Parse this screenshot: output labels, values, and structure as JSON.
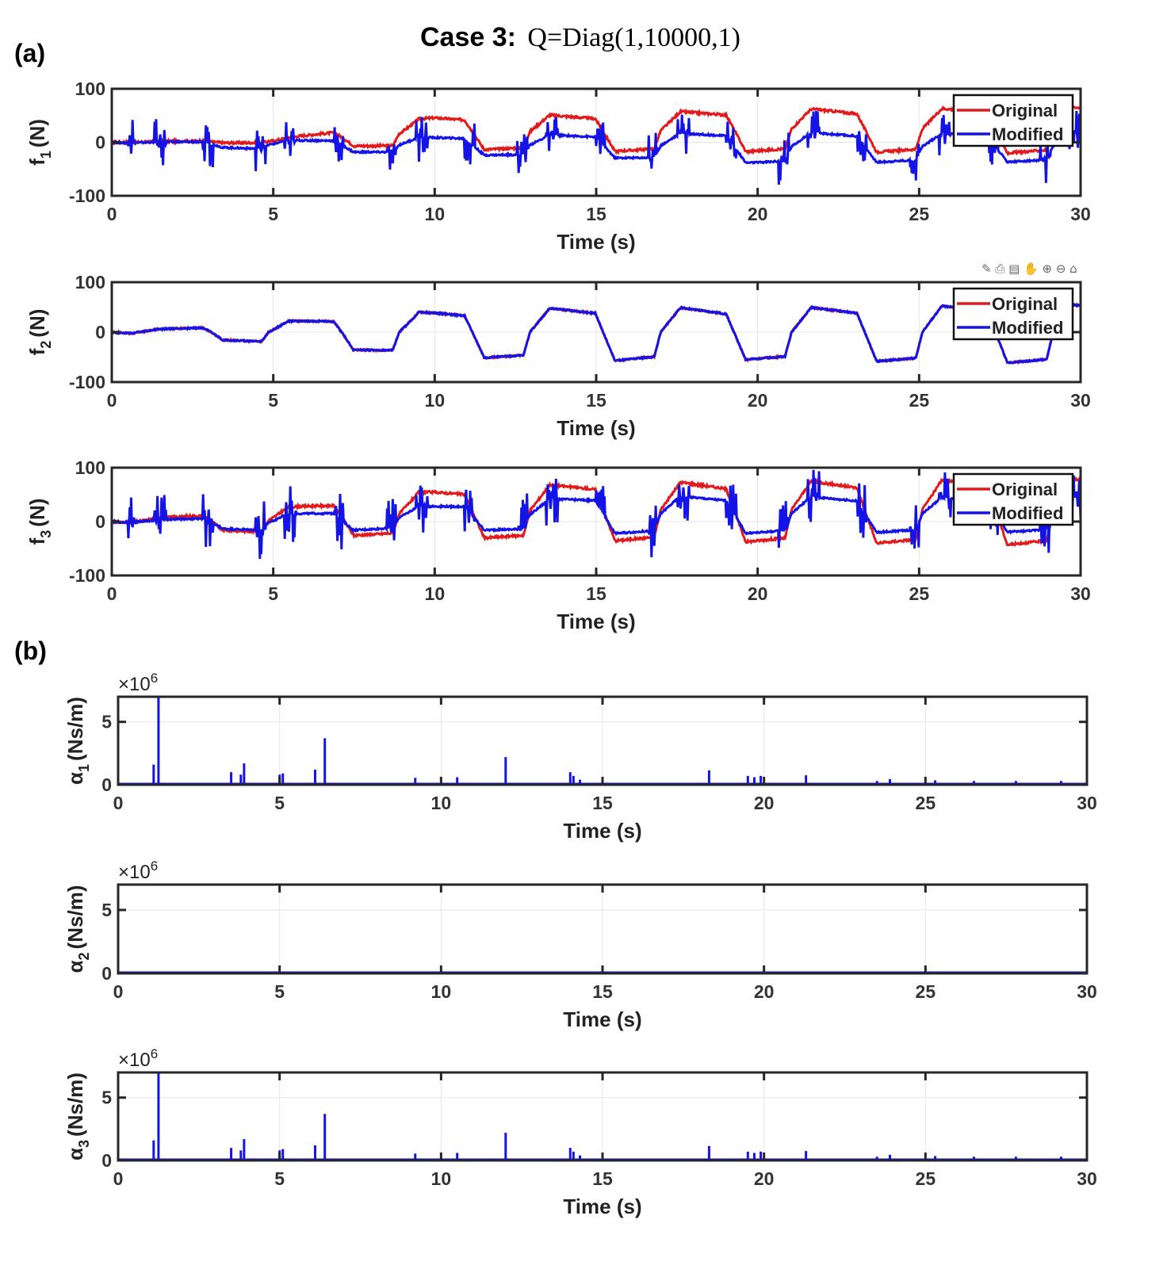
{
  "figure": {
    "title_bold": "Case 3:",
    "title_eq": "Q=Diag(1,10000,1)",
    "panel_a": "(a)",
    "panel_b": "(b)",
    "toolbar_glyphs": "✎ ⎙ ▤ ✋ ⊕ ⊖ ⌂"
  },
  "colors": {
    "original": "#e31a1c",
    "modified": "#1414e6",
    "axis": "#262626",
    "grid": "#e6e6e6"
  },
  "chart_data": [
    {
      "type": "line",
      "name": "f1",
      "ylabel_main": "f",
      "ylabel_sub": "1",
      "ylabel_tail": "(N)",
      "xlabel": "Time (s)",
      "xlim": [
        0,
        30
      ],
      "ylim": [
        -100,
        100
      ],
      "xticks": [
        "0",
        "5",
        "10",
        "15",
        "20",
        "25",
        "30"
      ],
      "yticks": [
        "-100",
        "0",
        "100"
      ],
      "legend": [
        "Original",
        "Modified"
      ],
      "legend_location": "top-right",
      "pattern": {
        "original": {
          "mean": [
            0,
            2,
            20,
            20,
            25,
            25,
            25
          ],
          "amp": [
            0,
            3,
            28,
            32,
            37,
            38,
            40
          ],
          "wiggle": 4
        },
        "modified": {
          "mean": [
            0,
            -5,
            -5,
            -5,
            -8,
            -8,
            -8
          ],
          "amp": [
            0,
            8,
            15,
            20,
            27,
            25,
            25
          ],
          "wiggle": 3,
          "chatter": 45
        }
      }
    },
    {
      "type": "line",
      "name": "f2",
      "ylabel_main": "f",
      "ylabel_sub": "2",
      "ylabel_tail": "(N)",
      "xlabel": "Time (s)",
      "xlim": [
        0,
        30
      ],
      "ylim": [
        -100,
        100
      ],
      "xticks": [
        "0",
        "5",
        "10",
        "15",
        "20",
        "25",
        "30"
      ],
      "yticks": [
        "-100",
        "0",
        "100"
      ],
      "legend": [
        "Original",
        "Modified"
      ],
      "legend_location": "top-right",
      "pattern": {
        "original": {
          "mean": [
            0,
            0,
            0,
            0,
            0,
            0,
            0
          ],
          "amp": [
            0,
            20,
            42,
            50,
            48,
            52,
            55
          ],
          "wiggle": 3
        },
        "modified": {
          "mean": [
            0,
            0,
            0,
            0,
            0,
            0,
            0
          ],
          "amp": [
            0,
            20,
            42,
            50,
            48,
            52,
            55
          ],
          "wiggle": 3,
          "chatter": 0
        }
      }
    },
    {
      "type": "line",
      "name": "f3",
      "ylabel_main": "f",
      "ylabel_sub": "3",
      "ylabel_tail": "(N)",
      "xlabel": "Time (s)",
      "xlim": [
        0,
        30
      ],
      "ylim": [
        -100,
        100
      ],
      "xticks": [
        "0",
        "5",
        "10",
        "15",
        "20",
        "25",
        "30"
      ],
      "yticks": [
        "-100",
        "0",
        "100"
      ],
      "legend": [
        "Original",
        "Modified"
      ],
      "legend_location": "top-right",
      "pattern": {
        "original": {
          "mean": [
            0,
            2,
            18,
            22,
            22,
            22,
            22
          ],
          "amp": [
            0,
            22,
            40,
            50,
            52,
            55,
            58
          ],
          "wiggle": 4
        },
        "modified": {
          "mean": [
            0,
            -2,
            10,
            15,
            15,
            15,
            15
          ],
          "amp": [
            0,
            15,
            20,
            32,
            32,
            30,
            30
          ],
          "wiggle": 3,
          "chatter": 55
        }
      }
    },
    {
      "type": "spikes",
      "name": "alpha1",
      "ylabel_main": "α",
      "ylabel_sub": "1",
      "ylabel_tail": "(Ns/m)",
      "exponent_base": "×10",
      "exponent_power": "6",
      "xlabel": "Time (s)",
      "xlim": [
        0,
        30
      ],
      "ylim": [
        0,
        7
      ],
      "xticks": [
        "0",
        "5",
        "10",
        "15",
        "20",
        "25",
        "30"
      ],
      "yticks": [
        "0",
        "5"
      ],
      "spikes": [
        [
          1.1,
          1.6
        ],
        [
          1.25,
          7.0
        ],
        [
          3.5,
          1.0
        ],
        [
          3.8,
          0.8
        ],
        [
          3.9,
          1.7
        ],
        [
          5.0,
          0.8
        ],
        [
          5.1,
          0.9
        ],
        [
          6.1,
          1.2
        ],
        [
          6.4,
          3.7
        ],
        [
          9.2,
          0.55
        ],
        [
          10.5,
          0.6
        ],
        [
          12.0,
          2.2
        ],
        [
          14.0,
          1.0
        ],
        [
          14.1,
          0.7
        ],
        [
          14.3,
          0.4
        ],
        [
          18.3,
          1.15
        ],
        [
          19.5,
          0.7
        ],
        [
          19.7,
          0.6
        ],
        [
          19.9,
          0.7
        ],
        [
          21.3,
          0.75
        ],
        [
          23.5,
          0.3
        ],
        [
          23.9,
          0.45
        ],
        [
          25.3,
          0.35
        ],
        [
          26.5,
          0.3
        ],
        [
          27.8,
          0.3
        ],
        [
          29.2,
          0.3
        ]
      ]
    },
    {
      "type": "spikes",
      "name": "alpha2",
      "ylabel_main": "α",
      "ylabel_sub": "2",
      "ylabel_tail": "(Ns/m)",
      "exponent_base": "×10",
      "exponent_power": "6",
      "xlabel": "Time (s)",
      "xlim": [
        0,
        30
      ],
      "ylim": [
        0,
        7
      ],
      "xticks": [
        "0",
        "5",
        "10",
        "15",
        "20",
        "25",
        "30"
      ],
      "yticks": [
        "0",
        "5"
      ],
      "spikes": []
    },
    {
      "type": "spikes",
      "name": "alpha3",
      "ylabel_main": "α",
      "ylabel_sub": "3",
      "ylabel_tail": "(Ns/m)",
      "exponent_base": "×10",
      "exponent_power": "6",
      "xlabel": "Time (s)",
      "xlim": [
        0,
        30
      ],
      "ylim": [
        0,
        7
      ],
      "xticks": [
        "0",
        "5",
        "10",
        "15",
        "20",
        "25",
        "30"
      ],
      "yticks": [
        "0",
        "5"
      ],
      "spikes": [
        [
          1.1,
          1.6
        ],
        [
          1.25,
          7.0
        ],
        [
          3.5,
          1.0
        ],
        [
          3.8,
          0.8
        ],
        [
          3.9,
          1.7
        ],
        [
          5.0,
          0.8
        ],
        [
          5.1,
          0.9
        ],
        [
          6.1,
          1.2
        ],
        [
          6.4,
          3.7
        ],
        [
          9.2,
          0.55
        ],
        [
          10.5,
          0.6
        ],
        [
          12.0,
          2.2
        ],
        [
          14.0,
          1.0
        ],
        [
          14.1,
          0.7
        ],
        [
          14.3,
          0.4
        ],
        [
          18.3,
          1.15
        ],
        [
          19.5,
          0.7
        ],
        [
          19.7,
          0.6
        ],
        [
          19.9,
          0.7
        ],
        [
          21.3,
          0.75
        ],
        [
          23.5,
          0.3
        ],
        [
          23.9,
          0.45
        ],
        [
          25.3,
          0.35
        ],
        [
          26.5,
          0.3
        ],
        [
          27.8,
          0.3
        ],
        [
          29.2,
          0.3
        ]
      ]
    }
  ]
}
